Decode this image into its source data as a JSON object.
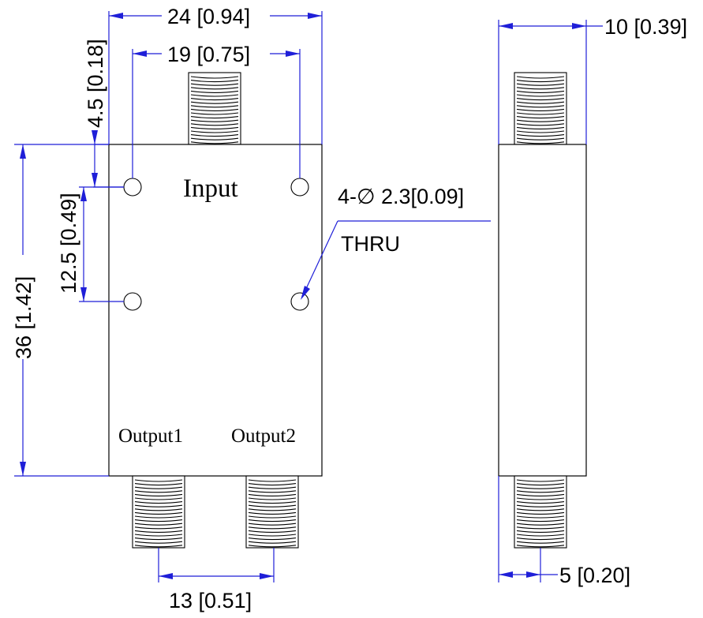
{
  "labels": {
    "input": "Input",
    "output1": "Output1",
    "output2": "Output2"
  },
  "dimensions": {
    "overall_width": "24 [0.94]",
    "hole_spacing_x": "19 [0.75]",
    "hole_offset_top": "4.5 [0.18]",
    "hole_spacing_y": "12.5 [0.49]",
    "overall_height": "36 [1.42]",
    "output_spacing": "13 [0.51]",
    "side_thickness": "10 [0.39]",
    "connector_offset": "5 [0.20]"
  },
  "callout": {
    "holes": "4-∅ 2.3[0.09]",
    "thru": "THRU"
  },
  "colors": {
    "dimension": "#1f1fd8",
    "outline": "#000000",
    "background": "#ffffff"
  }
}
